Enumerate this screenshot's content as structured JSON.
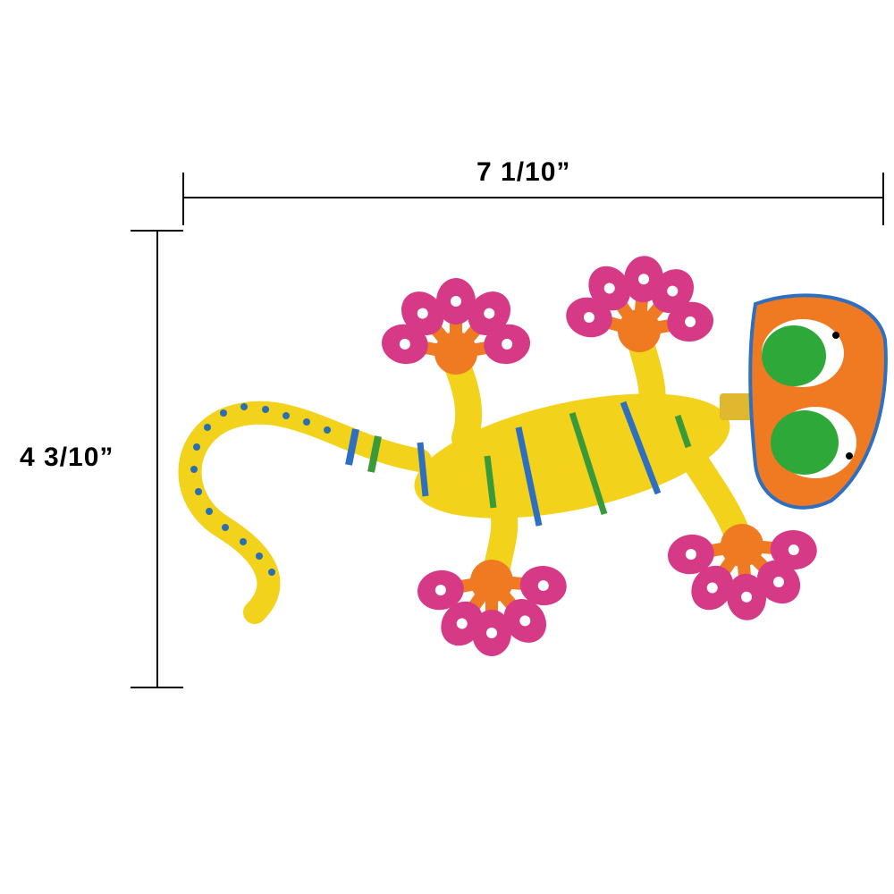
{
  "dimensions": {
    "width_label": "7 1/10”",
    "height_label": "4 3/10”"
  },
  "product": {
    "subject": "gecko-figurine",
    "colors": {
      "body": "#f2d21a",
      "feet_pads": "#d63a86",
      "feet_base": "#f07a22",
      "head": "#f07a22",
      "eyes": "#2fa83a",
      "stripe_blue": "#2f6fc0",
      "stripe_green": "#3a9a3a",
      "dots": "#2a6fb0"
    }
  }
}
